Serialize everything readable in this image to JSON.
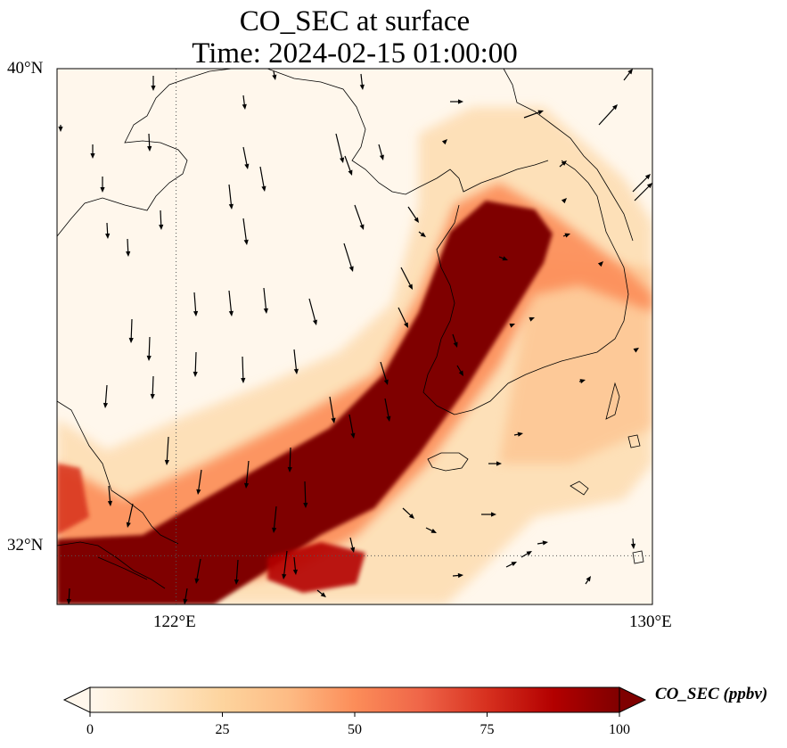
{
  "title": {
    "line1": "CO_SEC at surface",
    "line2": "Time: 2024-02-15 01:00:00"
  },
  "map": {
    "lat_range": [
      31.2,
      40.0
    ],
    "lon_range": [
      120.0,
      130.0
    ],
    "lat_ticks": [
      {
        "value": 40,
        "label": "40°N"
      },
      {
        "value": 32,
        "label": "32°N"
      }
    ],
    "lon_ticks": [
      {
        "value": 122,
        "label": "122°E"
      },
      {
        "value": 130,
        "label": "130°E"
      }
    ],
    "gridlines": "dotted",
    "variable": "CO_SEC",
    "units": "ppbv"
  },
  "colorbar": {
    "label": "CO_SEC (ppbv)",
    "ticks": [
      0,
      25,
      50,
      75,
      100
    ],
    "min": 0,
    "max": 100,
    "extend": "both",
    "colormap": [
      "#fff7ec",
      "#fee8c8",
      "#fdd49e",
      "#fdbb84",
      "#fc8d59",
      "#ef6548",
      "#d7301f",
      "#b30000",
      "#7f0000"
    ]
  }
}
